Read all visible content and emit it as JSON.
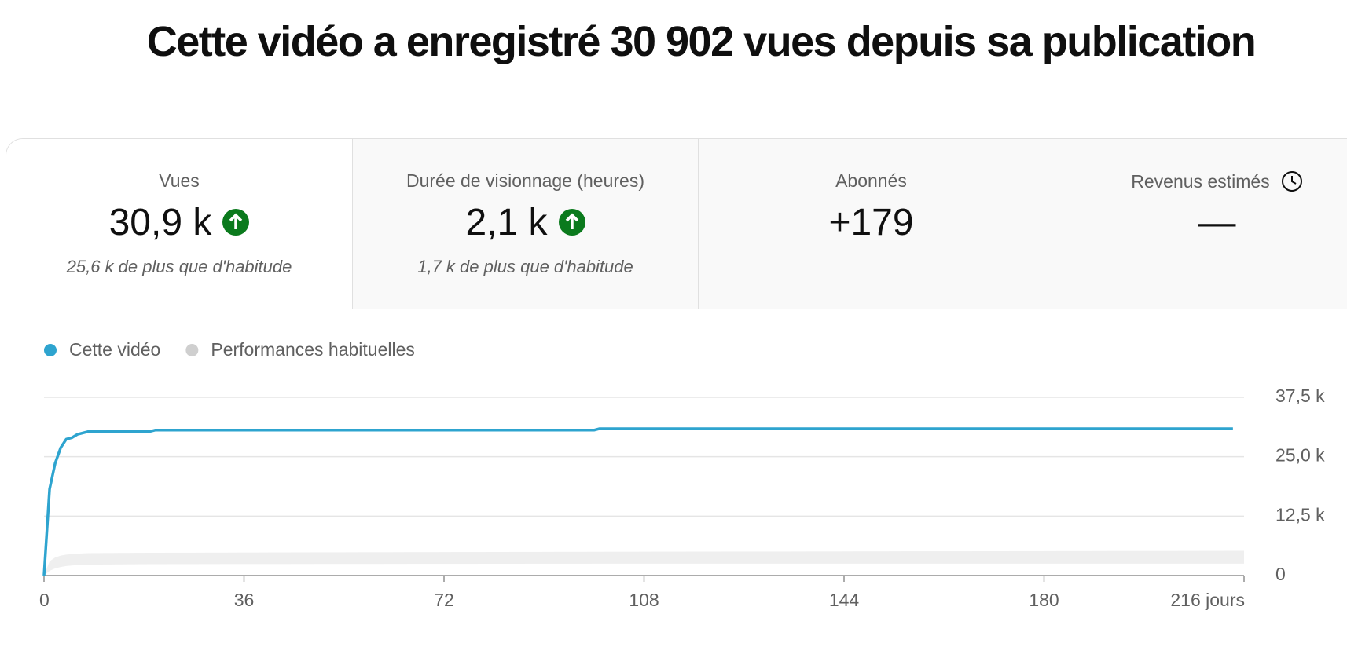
{
  "header": {
    "title": "Cette vidéo a enregistré 30 902 vues depuis sa publication"
  },
  "cards": [
    {
      "label": "Vues",
      "value": "30,9 k",
      "note": "25,6 k de plus que d'habitude"
    },
    {
      "label": "Durée de visionnage (heures)",
      "value": "2,1 k",
      "note": "1,7 k de plus que d'habitude"
    },
    {
      "label": "Abonnés",
      "value": "+179"
    },
    {
      "label": "Revenus estimés",
      "value": "—"
    }
  ],
  "chart_data": {
    "type": "line",
    "x": [
      0,
      1,
      2,
      3,
      4,
      5,
      6,
      8,
      19,
      20,
      99,
      100,
      214,
      216
    ],
    "series": [
      {
        "name": "Cette vidéo",
        "color": "#2ea4cf",
        "values": [
          0,
          18.2,
          23.6,
          26.9,
          28.7,
          29.0,
          29.7,
          30.3,
          30.3,
          30.6,
          30.6,
          30.9,
          30.9,
          null
        ]
      },
      {
        "name": "Performances habituelles",
        "color": "#cfcfcf",
        "fill": "#efefef",
        "values": [
          0,
          3.0,
          3.8,
          4.2,
          4.4,
          4.5,
          4.6,
          4.7,
          4.8,
          4.8,
          5.0,
          5.0,
          5.2,
          5.2
        ],
        "low": [
          0,
          1.0,
          1.5,
          1.8,
          2.0,
          2.1,
          2.2,
          2.3,
          2.4,
          2.4,
          2.5,
          2.5,
          2.5,
          2.5
        ]
      }
    ],
    "xlim": [
      0,
      216
    ],
    "xticks": [
      0,
      36,
      72,
      108,
      144,
      180,
      {
        "value": 216,
        "label": "216 jours"
      }
    ],
    "ylim": [
      0,
      37.5
    ],
    "yticks": [
      0,
      {
        "value": 12.5,
        "label": "12,5 k"
      },
      {
        "value": 25,
        "label": "25,0 k"
      },
      {
        "value": 37.5,
        "label": "37,5 k"
      }
    ],
    "grid": true
  }
}
